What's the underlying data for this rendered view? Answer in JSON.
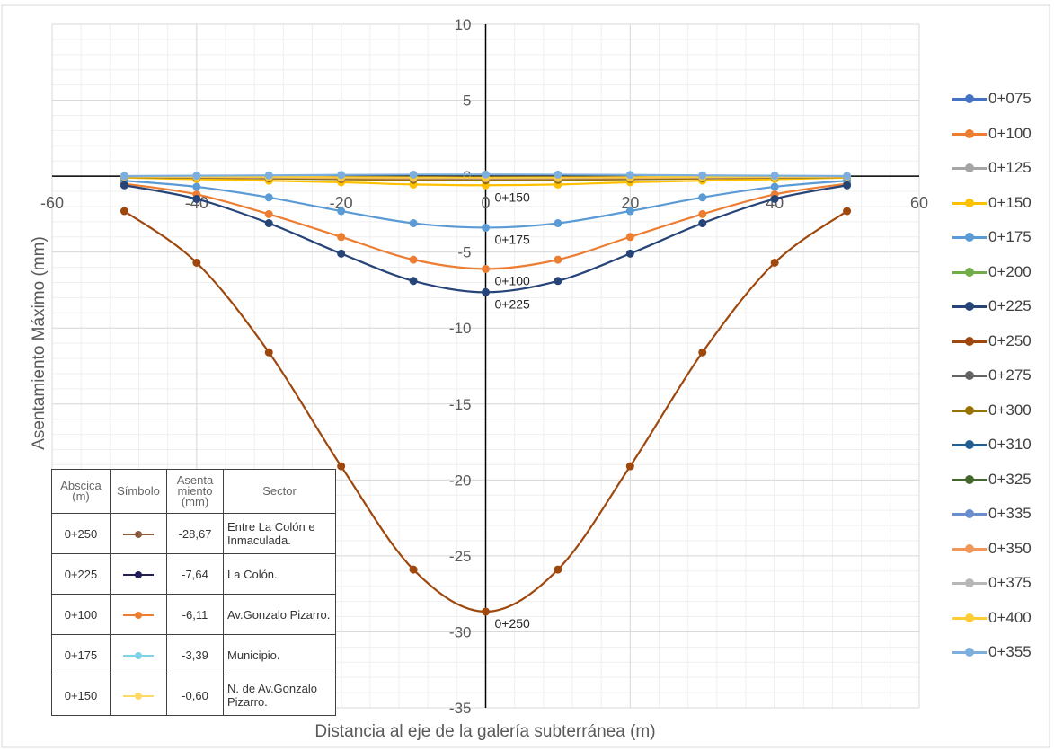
{
  "chart_data": {
    "type": "line",
    "xlabel": "Distancia al eje de la galería subterránea (m)",
    "ylabel": "Asentamiento Máximo (mm)",
    "xlim": [
      -60,
      60
    ],
    "ylim": [
      -35,
      10
    ],
    "x_ticks": [
      "-60",
      "-40",
      "-20",
      "0",
      "20",
      "40",
      "60"
    ],
    "y_ticks": [
      "10",
      "5",
      "0",
      "-5",
      "-10",
      "-15",
      "-20",
      "-25",
      "-30",
      "-35"
    ],
    "grid": true,
    "legend_position": "right",
    "x": [
      -50,
      -40,
      -30,
      -20,
      -10,
      0,
      10,
      20,
      30,
      40,
      50
    ],
    "series": [
      {
        "name": "0+075",
        "color": "#4472C4",
        "values": [
          -0.05,
          -0.1,
          -0.14,
          -0.18,
          -0.2,
          -0.21,
          -0.2,
          -0.18,
          -0.14,
          -0.1,
          -0.05
        ]
      },
      {
        "name": "0+100",
        "color": "#ED7D31",
        "values": [
          -0.5,
          -1.2,
          -2.5,
          -4.0,
          -5.5,
          -6.11,
          -5.5,
          -4.0,
          -2.5,
          -1.2,
          -0.5
        ]
      },
      {
        "name": "0+125",
        "color": "#A5A5A5",
        "values": [
          -0.05,
          -0.1,
          -0.15,
          -0.2,
          -0.25,
          -0.27,
          -0.25,
          -0.2,
          -0.15,
          -0.1,
          -0.05
        ]
      },
      {
        "name": "0+150",
        "color": "#FFC000",
        "values": [
          -0.1,
          -0.2,
          -0.3,
          -0.4,
          -0.55,
          -0.6,
          -0.55,
          -0.4,
          -0.3,
          -0.2,
          -0.1
        ]
      },
      {
        "name": "0+175",
        "color": "#5B9BD5",
        "values": [
          -0.3,
          -0.7,
          -1.4,
          -2.3,
          -3.1,
          -3.39,
          -3.1,
          -2.3,
          -1.4,
          -0.7,
          -0.3
        ]
      },
      {
        "name": "0+200",
        "color": "#70AD47",
        "values": [
          -0.05,
          -0.08,
          -0.1,
          -0.12,
          -0.14,
          -0.15,
          -0.14,
          -0.12,
          -0.1,
          -0.08,
          -0.05
        ]
      },
      {
        "name": "0+225",
        "color": "#264478",
        "values": [
          -0.6,
          -1.5,
          -3.1,
          -5.1,
          -6.9,
          -7.64,
          -6.9,
          -5.1,
          -3.1,
          -1.5,
          -0.6
        ]
      },
      {
        "name": "0+250",
        "color": "#9E480E",
        "values": [
          -2.3,
          -5.7,
          -11.6,
          -19.1,
          -25.9,
          -28.67,
          -25.9,
          -19.1,
          -11.6,
          -5.7,
          -2.3
        ]
      },
      {
        "name": "0+275",
        "color": "#636363",
        "values": [
          -0.05,
          -0.08,
          -0.12,
          -0.15,
          -0.18,
          -0.19,
          -0.18,
          -0.15,
          -0.12,
          -0.08,
          -0.05
        ]
      },
      {
        "name": "0+300",
        "color": "#997300",
        "values": [
          -0.05,
          -0.1,
          -0.15,
          -0.2,
          -0.25,
          -0.28,
          -0.25,
          -0.2,
          -0.15,
          -0.1,
          -0.05
        ]
      },
      {
        "name": "0+310",
        "color": "#255E91",
        "values": [
          -0.04,
          -0.07,
          -0.1,
          -0.13,
          -0.15,
          -0.16,
          -0.15,
          -0.13,
          -0.1,
          -0.07,
          -0.04
        ]
      },
      {
        "name": "0+325",
        "color": "#43682B",
        "values": [
          -0.03,
          -0.05,
          -0.08,
          -0.1,
          -0.12,
          -0.13,
          -0.12,
          -0.1,
          -0.08,
          -0.05,
          -0.03
        ]
      },
      {
        "name": "0+335",
        "color": "#698ED0",
        "values": [
          -0.02,
          -0.04,
          -0.06,
          -0.08,
          -0.09,
          -0.1,
          -0.09,
          -0.08,
          -0.06,
          -0.04,
          -0.02
        ]
      },
      {
        "name": "0+350",
        "color": "#F1975A",
        "values": [
          -0.03,
          -0.06,
          -0.09,
          -0.12,
          -0.14,
          -0.15,
          -0.14,
          -0.12,
          -0.09,
          -0.06,
          -0.03
        ]
      },
      {
        "name": "0+375",
        "color": "#B7B7B7",
        "values": [
          -0.02,
          -0.04,
          -0.06,
          -0.08,
          -0.1,
          -0.11,
          -0.1,
          -0.08,
          -0.06,
          -0.04,
          -0.02
        ]
      },
      {
        "name": "0+400",
        "color": "#FFCD33",
        "values": [
          -0.02,
          -0.03,
          -0.05,
          -0.07,
          -0.08,
          -0.09,
          -0.08,
          -0.07,
          -0.05,
          -0.03,
          -0.02
        ]
      },
      {
        "name": "0+355",
        "color": "#7CAFDD",
        "values": [
          0.01,
          0.03,
          0.05,
          0.08,
          0.1,
          0.11,
          0.1,
          0.08,
          0.05,
          0.03,
          0.01
        ]
      }
    ],
    "annotations": [
      {
        "text": "0+150",
        "x": 0,
        "y": -0.6
      },
      {
        "text": "0+175",
        "x": 0,
        "y": -3.39
      },
      {
        "text": "0+100",
        "x": 0,
        "y": -6.11
      },
      {
        "text": "0+225",
        "x": 0,
        "y": -7.64
      },
      {
        "text": "0+250",
        "x": 0,
        "y": -28.67
      }
    ]
  },
  "table": {
    "headers": {
      "abscisa": "Abscica (m)",
      "simbolo": "Símbolo",
      "asentamiento": "Asenta miento (mm)",
      "sector": "Sector"
    },
    "rows": [
      {
        "abscisa": "0+250",
        "color": "#8B5A3C",
        "asentamiento": "-28,67",
        "sector": "Entre La Colón e Inmaculada."
      },
      {
        "abscisa": "0+225",
        "color": "#1F1F5A",
        "asentamiento": "-7,64",
        "sector": "La Colón."
      },
      {
        "abscisa": "0+100",
        "color": "#ED7D31",
        "asentamiento": "-6,11",
        "sector": "Av.Gonzalo Pizarro."
      },
      {
        "abscisa": "0+175",
        "color": "#7FD3E8",
        "asentamiento": "-3,39",
        "sector": "Municipio."
      },
      {
        "abscisa": "0+150",
        "color": "#FFD966",
        "asentamiento": "-0,60",
        "sector": "N. de Av.Gonzalo Pizarro."
      }
    ]
  }
}
